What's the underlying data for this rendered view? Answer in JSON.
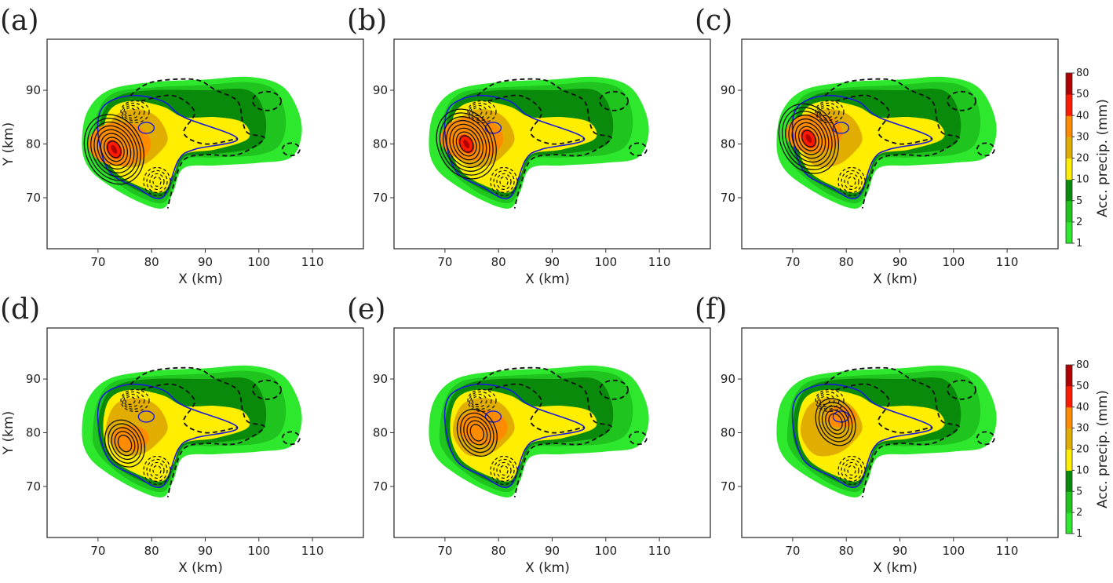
{
  "chart_data": {
    "type": "contour",
    "panels": [
      {
        "label": "(a)",
        "core": [
          73,
          79
        ],
        "has_red": true,
        "orange_scale": 1.0,
        "show_ylabel": true
      },
      {
        "label": "(b)",
        "core": [
          74,
          80
        ],
        "has_red": true,
        "orange_scale": 1.0,
        "show_ylabel": false
      },
      {
        "label": "(c)",
        "core": [
          73,
          81
        ],
        "has_red": true,
        "orange_scale": 0.9,
        "show_ylabel": false
      },
      {
        "label": "(d)",
        "core": [
          75,
          78
        ],
        "has_red": false,
        "orange_scale": 0.6,
        "show_ylabel": true
      },
      {
        "label": "(e)",
        "core": [
          76,
          80
        ],
        "has_red": false,
        "orange_scale": 0.8,
        "show_ylabel": false
      },
      {
        "label": "(f)",
        "core": [
          78,
          82
        ],
        "has_red": false,
        "orange_scale": 0.5,
        "show_ylabel": false
      }
    ],
    "xlabel": "X (km)",
    "ylabel": "Y (km)",
    "xlim": [
      60.5,
      119.5
    ],
    "ylim": [
      60.5,
      99.5
    ],
    "xticks": [
      70,
      80,
      90,
      100,
      110
    ],
    "yticks": [
      70,
      80,
      90
    ],
    "colorbar": {
      "label": "Acc. precip. (mm)",
      "levels": [
        1,
        2,
        5,
        10,
        20,
        30,
        40,
        50,
        80
      ],
      "colors": [
        "#2ee82e",
        "#1fc41f",
        "#0a8a0a",
        "#ffee00",
        "#e0ad00",
        "#ff8c00",
        "#ff1a00",
        "#b00000"
      ]
    },
    "regions": {
      "1": [
        [
          67,
          80
        ],
        [
          68,
          86
        ],
        [
          72,
          90
        ],
        [
          80,
          91.5
        ],
        [
          90,
          92
        ],
        [
          98,
          92.5
        ],
        [
          104,
          91
        ],
        [
          107,
          87
        ],
        [
          108,
          82
        ],
        [
          106,
          77.5
        ],
        [
          100,
          76.5
        ],
        [
          92,
          76
        ],
        [
          86,
          75.5
        ],
        [
          84,
          71
        ],
        [
          82,
          68
        ],
        [
          77,
          69.5
        ],
        [
          71,
          73
        ],
        [
          68,
          76
        ]
      ],
      "2": [
        [
          69,
          80
        ],
        [
          70,
          86
        ],
        [
          73,
          89.5
        ],
        [
          80,
          90.5
        ],
        [
          90,
          91
        ],
        [
          98,
          91.5
        ],
        [
          103,
          90
        ],
        [
          105,
          85
        ],
        [
          104,
          80
        ],
        [
          100,
          78
        ],
        [
          92,
          77.5
        ],
        [
          86,
          77
        ],
        [
          84,
          72
        ],
        [
          82,
          69
        ],
        [
          77,
          70.5
        ],
        [
          72,
          74
        ],
        [
          69.5,
          77
        ]
      ],
      "5": [
        [
          70,
          80
        ],
        [
          71,
          86
        ],
        [
          74,
          89
        ],
        [
          80,
          90
        ],
        [
          90,
          90
        ],
        [
          98,
          90
        ],
        [
          101,
          86
        ],
        [
          101,
          81
        ],
        [
          98,
          79
        ],
        [
          90,
          78
        ],
        [
          86,
          77.5
        ],
        [
          84,
          73
        ],
        [
          82,
          70
        ],
        [
          77,
          71.5
        ],
        [
          72,
          75
        ]
      ],
      "10": [
        [
          71,
          80
        ],
        [
          72,
          86
        ],
        [
          76,
          88
        ],
        [
          82,
          87
        ],
        [
          86,
          85
        ],
        [
          92,
          85
        ],
        [
          97,
          84
        ],
        [
          98,
          81
        ],
        [
          92,
          79
        ],
        [
          86,
          78
        ],
        [
          84,
          74
        ],
        [
          82,
          71
        ],
        [
          78,
          72
        ],
        [
          73,
          75
        ]
      ],
      "20": [
        [
          71.5,
          80
        ],
        [
          73,
          85
        ],
        [
          77,
          86.5
        ],
        [
          81,
          85
        ],
        [
          83,
          81
        ],
        [
          81,
          78
        ],
        [
          78,
          76
        ],
        [
          74,
          76
        ]
      ]
    },
    "dashed_contours": [
      [
        [
          76,
          89
        ],
        [
          80,
          91.5
        ],
        [
          88,
          92
        ],
        [
          92,
          90
        ],
        [
          96,
          88
        ],
        [
          97,
          84
        ],
        [
          98,
          82
        ],
        [
          101,
          81
        ],
        [
          96,
          78
        ],
        [
          90,
          78
        ],
        [
          86,
          77
        ],
        [
          84,
          72
        ],
        [
          83,
          68
        ]
      ],
      [
        [
          78,
          88
        ],
        [
          84,
          89
        ],
        [
          88,
          86
        ],
        [
          86,
          82
        ],
        [
          90,
          80
        ],
        [
          96,
          81
        ]
      ]
    ],
    "blue_contour": [
      [
        70,
        82
      ],
      [
        71,
        87
      ],
      [
        76,
        89
      ],
      [
        82,
        88
      ],
      [
        86,
        85
      ],
      [
        96,
        81
      ],
      [
        88,
        79
      ],
      [
        85,
        77
      ],
      [
        82,
        70
      ],
      [
        77,
        72
      ],
      [
        72,
        75
      ]
    ]
  }
}
